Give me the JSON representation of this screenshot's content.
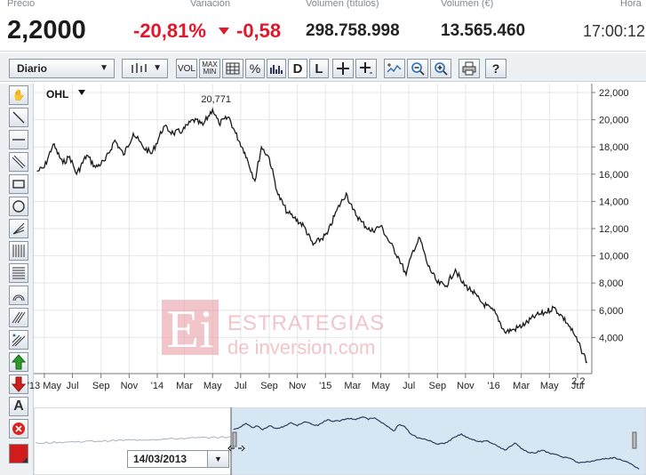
{
  "quote": {
    "price_label": "Precio",
    "price": "2,2000",
    "change_label": "Variación",
    "change_pct": "-20,81%",
    "change_abs": "-0,58",
    "volume_titles_label": "Volumen (títulos)",
    "volume_titles": "298.758.998",
    "volume_eur_label": "Volumen (€)",
    "volume_eur": "13.565.460",
    "time_label": "Hora",
    "time": "17:00:12"
  },
  "toolbar": {
    "period_select": "Diario",
    "vol_label": "VOL",
    "maxmin_label_top": "MAX",
    "maxmin_label_bottom": "MIN",
    "pct_label": "%",
    "d_label": "D",
    "l_label": "L",
    "help_label": "?"
  },
  "lefttools": {
    "text_tool_label": "A"
  },
  "watermark": {
    "logo_letters": "Ei",
    "line1": "ESTRATEGIAS",
    "line2": "de inversion.com"
  },
  "navigator": {
    "date": "14/03/2013"
  },
  "colors": {
    "negative": "#e3162b",
    "price_line": "#1a1a1a",
    "grid": "#e3e6ea",
    "nav_line": "#2a3f5a",
    "nav_fill": "#d7e6f3",
    "watermark": "#e8a0a8"
  },
  "chart_data": {
    "type": "line",
    "title": "OHL",
    "series": [
      {
        "x": [
          "2013-04-15",
          "2013-05-01",
          "2013-05-20",
          "2013-06-10",
          "2013-06-25",
          "2013-07-10",
          "2013-08-01",
          "2013-08-20",
          "2013-09-10",
          "2013-10-01",
          "2013-10-20",
          "2013-11-10",
          "2013-12-01",
          "2013-12-20",
          "2014-01-15",
          "2014-02-05",
          "2014-02-25",
          "2014-03-20",
          "2014-04-10",
          "2014-05-01",
          "2014-05-15",
          "2014-06-05",
          "2014-06-20",
          "2014-07-10",
          "2014-08-01",
          "2014-08-15",
          "2014-09-01",
          "2014-09-20",
          "2014-10-10",
          "2014-10-25",
          "2014-11-15",
          "2014-12-05",
          "2015-01-05",
          "2015-01-25",
          "2015-02-15",
          "2015-03-01",
          "2015-03-20",
          "2015-04-10",
          "2015-05-01",
          "2015-05-20",
          "2015-06-10",
          "2015-06-25",
          "2015-07-10",
          "2015-07-25",
          "2015-08-10",
          "2015-09-01",
          "2015-09-20",
          "2015-10-10",
          "2015-10-25",
          "2015-11-15",
          "2015-12-05",
          "2016-01-05",
          "2016-01-25",
          "2016-02-15",
          "2016-03-10",
          "2016-04-01",
          "2016-04-20",
          "2016-05-10",
          "2016-05-25",
          "2016-06-10",
          "2016-06-24",
          "2016-07-08",
          "2016-07-22"
        ],
        "values": [
          16.2,
          16.5,
          18.2,
          16.8,
          17.3,
          16.0,
          17.4,
          16.5,
          17.0,
          18.5,
          17.4,
          19.0,
          18.0,
          17.5,
          19.5,
          19.0,
          19.2,
          20.0,
          19.6,
          20.771,
          19.7,
          20.2,
          19.0,
          17.6,
          15.5,
          18.0,
          17.2,
          14.5,
          13.2,
          12.8,
          12.2,
          10.8,
          11.6,
          13.3,
          14.6,
          13.4,
          12.5,
          11.8,
          12.2,
          11.0,
          9.8,
          8.6,
          10.4,
          11.3,
          9.4,
          8.0,
          7.8,
          9.0,
          8.0,
          7.4,
          6.6,
          5.8,
          4.4,
          4.6,
          5.0,
          5.6,
          5.8,
          6.2,
          5.7,
          5.0,
          4.2,
          3.2,
          2.2
        ]
      }
    ],
    "ylim": [
      2.0,
      22.0
    ],
    "yticks": [
      "22,000",
      "20,000",
      "18,000",
      "16,000",
      "14,000",
      "12,000",
      "10,000",
      "8,000",
      "6,000",
      "4,000"
    ],
    "xtick_labels": [
      "'13 May",
      "Jul",
      "Sep",
      "Nov",
      "'14",
      "Mar",
      "May",
      "Jul",
      "Sep",
      "Nov",
      "'15",
      "Mar",
      "May",
      "Jul",
      "Sep",
      "Nov",
      "'16",
      "Mar",
      "May",
      "Jul"
    ],
    "xtick_dates": [
      "2013-05-01",
      "2013-07-01",
      "2013-09-01",
      "2013-11-01",
      "2014-01-01",
      "2014-03-01",
      "2014-05-01",
      "2014-07-01",
      "2014-09-01",
      "2014-11-01",
      "2015-01-01",
      "2015-03-01",
      "2015-05-01",
      "2015-07-01",
      "2015-09-01",
      "2015-11-01",
      "2016-01-01",
      "2016-03-01",
      "2016-05-01",
      "2016-07-01"
    ],
    "xlim": [
      "2013-04-08",
      "2016-08-01"
    ],
    "annotations": [
      {
        "text": "20,771",
        "x": "2014-05-01",
        "y": 20.771
      },
      {
        "text": "2,2",
        "x": "2016-07-22",
        "y": 2.2
      }
    ],
    "legend": "none",
    "grid": true
  }
}
